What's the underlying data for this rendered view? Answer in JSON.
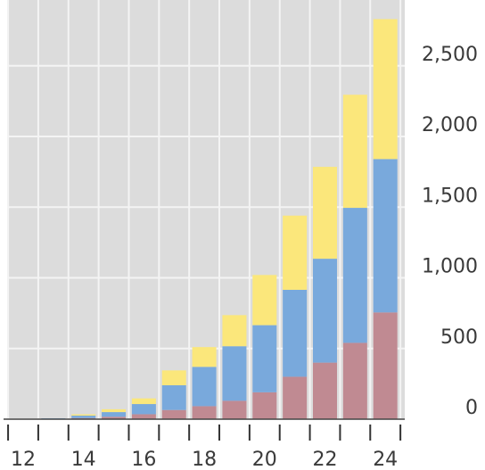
{
  "chart_data": {
    "type": "bar",
    "stacked": true,
    "title": "",
    "xlabel": "",
    "ylabel": "",
    "categories": [
      "12",
      "13",
      "14",
      "15",
      "16",
      "17",
      "18",
      "19",
      "20",
      "21",
      "22",
      "23",
      "24"
    ],
    "x_tick_labels": [
      "12",
      "14",
      "16",
      "18",
      "20",
      "22",
      "24"
    ],
    "y_tick_labels": [
      "0",
      "500",
      "1,000",
      "1,500",
      "2,000",
      "2,500"
    ],
    "y_ticks": [
      0,
      500,
      1000,
      1500,
      2000,
      2500
    ],
    "ylim": [
      0,
      2800
    ],
    "y_axis_position": "right",
    "grid": true,
    "background_color": "#dcdcdc",
    "grid_color": "#f4f4f4",
    "series": [
      {
        "color": "#c08a92",
        "values": [
          0,
          3,
          8,
          17,
          35,
          65,
          92,
          130,
          190,
          300,
          400,
          540,
          755
        ]
      },
      {
        "color": "#79a9dc",
        "values": [
          0,
          3,
          17,
          33,
          72,
          175,
          278,
          386,
          475,
          615,
          735,
          955,
          1085
        ]
      },
      {
        "color": "#fbe77b",
        "values": [
          0,
          0,
          9,
          20,
          40,
          105,
          140,
          220,
          355,
          525,
          650,
          800,
          990
        ]
      }
    ]
  }
}
